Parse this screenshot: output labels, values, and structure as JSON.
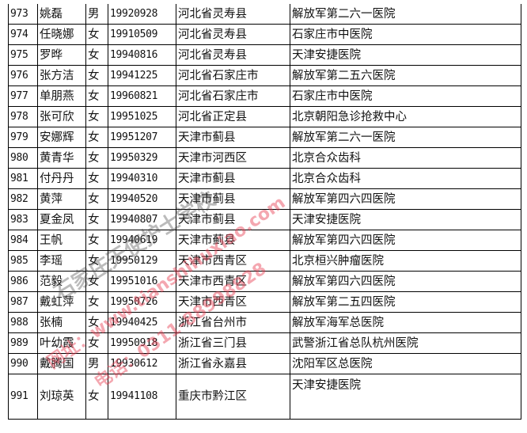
{
  "rows": [
    {
      "no": "973",
      "name": "姚磊",
      "sex": "男",
      "birth": "19920928",
      "origin": "河北省灵寿县",
      "hospital": "解放军第二六一医院"
    },
    {
      "no": "974",
      "name": "任晓娜",
      "sex": "女",
      "birth": "19910509",
      "origin": "河北省灵寿县",
      "hospital": "石家庄市中医院"
    },
    {
      "no": "975",
      "name": "罗晔",
      "sex": "女",
      "birth": "19940816",
      "origin": "河北省灵寿县",
      "hospital": "天津安捷医院"
    },
    {
      "no": "976",
      "name": "张方洁",
      "sex": "女",
      "birth": "19941225",
      "origin": "河北省石家庄市",
      "hospital": "解放军第二五六医院"
    },
    {
      "no": "977",
      "name": "单朋燕",
      "sex": "女",
      "birth": "19960821",
      "origin": "河北省石家庄市",
      "hospital": "石家庄市中医院"
    },
    {
      "no": "978",
      "name": "张可欣",
      "sex": "女",
      "birth": "19951025",
      "origin": "河北省正定县",
      "hospital": "北京朝阳急诊抢救中心"
    },
    {
      "no": "979",
      "name": "安娜辉",
      "sex": "女",
      "birth": "19951207",
      "origin": "天津市蓟县",
      "hospital": "解放军第二六一医院"
    },
    {
      "no": "980",
      "name": "黄青华",
      "sex": "女",
      "birth": "19950329",
      "origin": "天津市河西区",
      "hospital": "北京合众齿科"
    },
    {
      "no": "981",
      "name": "付丹丹",
      "sex": "女",
      "birth": "19940310",
      "origin": "天津市蓟县",
      "hospital": "北京合众齿科"
    },
    {
      "no": "982",
      "name": "黄萍",
      "sex": "女",
      "birth": "19940520",
      "origin": "天津市蓟县",
      "hospital": "解放军第四六四医院"
    },
    {
      "no": "983",
      "name": "夏金凤",
      "sex": "女",
      "birth": "19940807",
      "origin": "天津市蓟县",
      "hospital": "天津安捷医院"
    },
    {
      "no": "984",
      "name": "王帆",
      "sex": "女",
      "birth": "19940619",
      "origin": "天津市蓟县",
      "hospital": "解放军第四六四医院"
    },
    {
      "no": "985",
      "name": "李瑶",
      "sex": "女",
      "birth": "19950129",
      "origin": "天津市西青区",
      "hospital": "北京桓兴肿瘤医院"
    },
    {
      "no": "986",
      "name": "范毅",
      "sex": "女",
      "birth": "19951016",
      "origin": "天津市西青区",
      "hospital": "解放军第四六四医院"
    },
    {
      "no": "987",
      "name": "戴虹萍",
      "sex": "女",
      "birth": "19950726",
      "origin": "天津市西青区",
      "hospital": "解放军第二五四医院"
    },
    {
      "no": "988",
      "name": "张楠",
      "sex": "女",
      "birth": "19940425",
      "origin": "浙江省台州市",
      "hospital": "解放军海军总医院"
    },
    {
      "no": "989",
      "name": "叶幼霞",
      "sex": "女",
      "birth": "19950918",
      "origin": "浙江省三门县",
      "hospital": "武警浙江省总队杭州医院"
    },
    {
      "no": "990",
      "name": "戴腾国",
      "sex": "男",
      "birth": "19930612",
      "origin": "浙江省永嘉县",
      "hospital": "沈阳军区总医院"
    },
    {
      "no": "991",
      "name": "刘琼英",
      "sex": "女",
      "birth": "19941108",
      "origin": "重庆市黔江区",
      "hospital": "天津安捷医院"
    }
  ],
  "watermark": {
    "school": "石家庄天使护士学校",
    "website": "网址：www.tianshihuxiao.com",
    "phone": "电话：0311-88998828"
  }
}
